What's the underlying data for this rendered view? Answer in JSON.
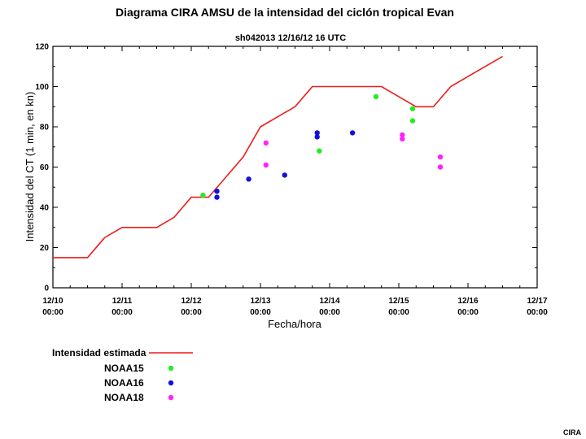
{
  "chart_data": {
    "type": "line",
    "title": "Diagrama CIRA AMSU  de la intensidad del ciclón tropical Evan",
    "subtitle": "sh042013  12/16/12  16 UTC",
    "xlabel": "Fecha/hora",
    "ylabel": "Intensidad del CT (1 min, en kn)",
    "x_ticks": [
      {
        "x": 0,
        "date": "12/10",
        "time": "00:00"
      },
      {
        "x": 1,
        "date": "12/11",
        "time": "00:00"
      },
      {
        "x": 2,
        "date": "12/12",
        "time": "00:00"
      },
      {
        "x": 3,
        "date": "12/13",
        "time": "00:00"
      },
      {
        "x": 4,
        "date": "12/14",
        "time": "00:00"
      },
      {
        "x": 5,
        "date": "12/15",
        "time": "00:00"
      },
      {
        "x": 6,
        "date": "12/16",
        "time": "00:00"
      },
      {
        "x": 7,
        "date": "12/17",
        "time": "00:00"
      }
    ],
    "xlim": [
      0,
      7
    ],
    "ylim": [
      0,
      120
    ],
    "y_ticks": [
      0,
      20,
      40,
      60,
      80,
      100,
      120
    ],
    "grid": false,
    "legend_position": "bottom-left",
    "series": [
      {
        "name": "Intensidad estimada",
        "kind": "line",
        "color": "#ee1c1c",
        "points": [
          [
            -0.5,
            15
          ],
          [
            0.5,
            15
          ],
          [
            0.75,
            25
          ],
          [
            1.0,
            30
          ],
          [
            1.5,
            30
          ],
          [
            1.75,
            35
          ],
          [
            2.0,
            45
          ],
          [
            2.25,
            45
          ],
          [
            2.5,
            55
          ],
          [
            2.75,
            65
          ],
          [
            3.0,
            80
          ],
          [
            3.5,
            90
          ],
          [
            3.75,
            100
          ],
          [
            4.0,
            100
          ],
          [
            4.5,
            100
          ],
          [
            4.75,
            100
          ],
          [
            5.0,
            95
          ],
          [
            5.25,
            90
          ],
          [
            5.5,
            90
          ],
          [
            5.75,
            100
          ],
          [
            6.0,
            105
          ],
          [
            6.5,
            115
          ]
        ]
      },
      {
        "name": "NOAA15",
        "kind": "scatter",
        "color": "#22ee22",
        "points": [
          [
            2.17,
            46
          ],
          [
            3.85,
            68
          ],
          [
            4.67,
            95
          ],
          [
            5.2,
            89
          ],
          [
            5.2,
            83
          ]
        ]
      },
      {
        "name": "NOAA16",
        "kind": "scatter",
        "color": "#1111dd",
        "points": [
          [
            2.37,
            48
          ],
          [
            2.37,
            45
          ],
          [
            2.83,
            54
          ],
          [
            3.35,
            56
          ],
          [
            3.82,
            77
          ],
          [
            3.82,
            75
          ],
          [
            4.33,
            77
          ]
        ]
      },
      {
        "name": "NOAA18",
        "kind": "scatter",
        "color": "#ff22ff",
        "points": [
          [
            3.08,
            72
          ],
          [
            3.08,
            61
          ],
          [
            5.05,
            76
          ],
          [
            5.05,
            74
          ],
          [
            5.6,
            65
          ],
          [
            5.6,
            60
          ]
        ]
      }
    ]
  },
  "credit": "CIRA"
}
